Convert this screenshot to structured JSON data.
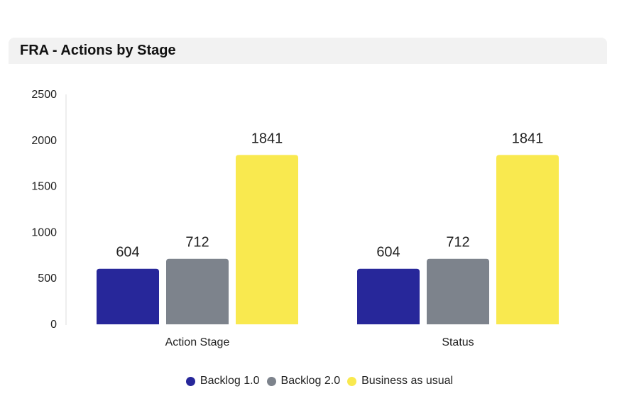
{
  "header": {
    "title": "FRA - Actions by Stage"
  },
  "chart_data": {
    "type": "bar",
    "title": "FRA - Actions by Stage",
    "categories": [
      "Action Stage",
      "Status"
    ],
    "series": [
      {
        "name": "Backlog 1.0",
        "color": "#27279a",
        "values": [
          604,
          604
        ]
      },
      {
        "name": "Backlog 2.0",
        "color": "#7d838c",
        "values": [
          712,
          712
        ]
      },
      {
        "name": "Business as usual",
        "color": "#f9e94f",
        "values": [
          1841,
          1841
        ]
      }
    ],
    "yticks": [
      0,
      500,
      1000,
      1500,
      2000,
      2500
    ],
    "ylim": [
      0,
      2500
    ],
    "xlabel": "",
    "ylabel": "",
    "grid": false,
    "legend": "bottom-center"
  }
}
